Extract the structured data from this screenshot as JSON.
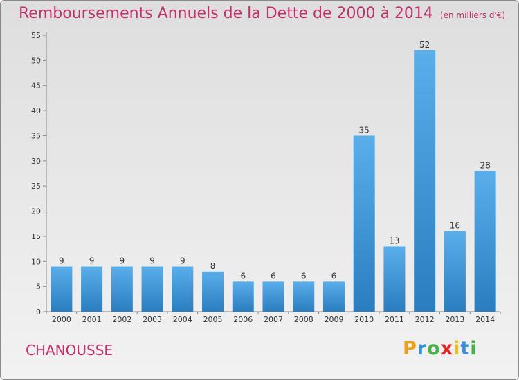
{
  "title": {
    "main": "Remboursements Annuels de la Dette de 2000 à 2014",
    "unit": "(en milliers d'€)"
  },
  "commune": "CHANOUSSE",
  "logo": {
    "letters": [
      "P",
      "r",
      "o",
      "x",
      "i",
      "t",
      "i"
    ],
    "colors": [
      "#e8a020",
      "#3b8ed8",
      "#48b048",
      "#e02828",
      "#e8c020",
      "#3b8ed8",
      "#48b048"
    ]
  },
  "colors": {
    "title": "#c0306a",
    "bar_light": "#5aaeea",
    "bar_dark": "#2a7ec0"
  },
  "chart_data": {
    "type": "bar",
    "title": "Remboursements Annuels de la Dette de 2000 à 2014",
    "subtitle": "(en milliers d'€)",
    "categories": [
      "2000",
      "2001",
      "2002",
      "2003",
      "2004",
      "2005",
      "2006",
      "2007",
      "2008",
      "2009",
      "2010",
      "2011",
      "2012",
      "2013",
      "2014"
    ],
    "values": [
      9,
      9,
      9,
      9,
      9,
      8,
      6,
      6,
      6,
      6,
      35,
      13,
      52,
      16,
      28
    ],
    "ylim": [
      0,
      55
    ],
    "yticks": [
      0,
      5,
      10,
      15,
      20,
      25,
      30,
      35,
      40,
      45,
      50,
      55
    ],
    "grid": false,
    "legend": "none"
  }
}
